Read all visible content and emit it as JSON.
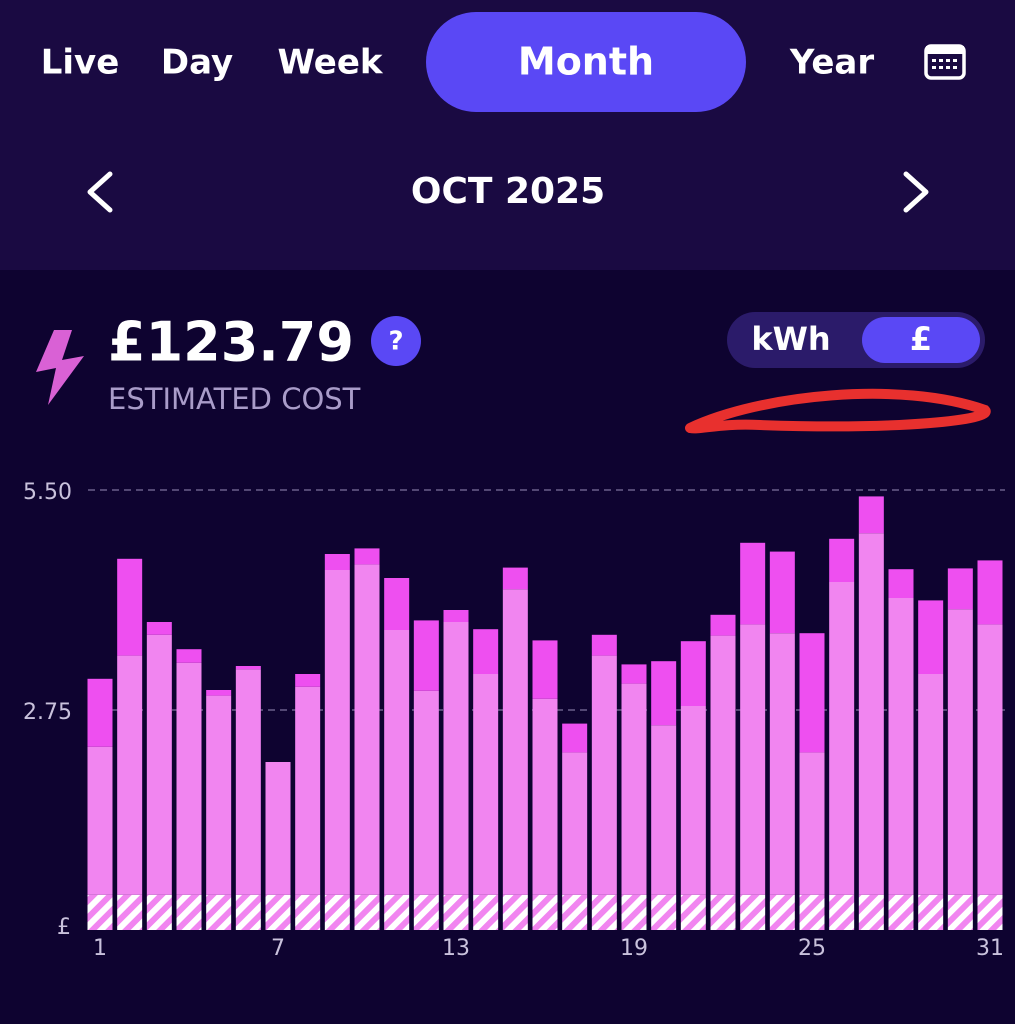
{
  "tabs": [
    "Live",
    "Day",
    "Week",
    "Month",
    "Year"
  ],
  "selected_tab": 3,
  "period": "OCT 2025",
  "cost": {
    "amount": "£123.79",
    "label": "ESTIMATED COST",
    "help": "?"
  },
  "unit_toggle": [
    "kWh",
    "£"
  ],
  "selected_unit": 1,
  "chart_data": {
    "type": "bar",
    "stacked": true,
    "categories": [
      1,
      null,
      null,
      null,
      null,
      null,
      7,
      null,
      null,
      null,
      null,
      null,
      13,
      null,
      null,
      null,
      null,
      null,
      19,
      null,
      null,
      null,
      null,
      null,
      25,
      null,
      null,
      null,
      null,
      null,
      31
    ],
    "series": [
      {
        "color": "#f185f0",
        "pattern": "hatch",
        "values": [
          0.44,
          0.44,
          0.44,
          0.44,
          0.44,
          0.44,
          0.44,
          0.44,
          0.44,
          0.44,
          0.44,
          0.44,
          0.44,
          0.44,
          0.44,
          0.44,
          0.44,
          0.44,
          0.44,
          0.44,
          0.44,
          0.44,
          0.44,
          0.44,
          0.44,
          0.44,
          0.44,
          0.44,
          0.44,
          0.44,
          0.44
        ]
      },
      {
        "color": "#f185f0",
        "values": [
          1.85,
          2.99,
          3.25,
          2.9,
          2.49,
          2.82,
          1.66,
          2.6,
          4.06,
          4.13,
          3.31,
          2.55,
          3.41,
          2.76,
          3.82,
          2.45,
          1.78,
          2.99,
          2.64,
          2.12,
          2.36,
          3.24,
          3.38,
          3.27,
          1.78,
          3.91,
          4.52,
          3.71,
          2.76,
          3.57,
          3.38
        ]
      },
      {
        "color": "#ee4ff0",
        "values": [
          0.85,
          1.21,
          0.16,
          0.17,
          0.07,
          0.04,
          0,
          0.16,
          0.2,
          0.2,
          0.65,
          0.88,
          0.15,
          0.56,
          0.27,
          0.73,
          0.36,
          0.26,
          0.24,
          0.8,
          0.81,
          0.26,
          1.02,
          1.02,
          1.49,
          0.54,
          0.46,
          0.36,
          0.92,
          0.51,
          0.8
        ]
      }
    ],
    "ylim": [
      0,
      5.5
    ],
    "yticks": [
      {
        "value": 5.5,
        "label": "5.50"
      },
      2.75
    ],
    "y_unit": "£",
    "grid": true,
    "grid_style": "dashed"
  }
}
